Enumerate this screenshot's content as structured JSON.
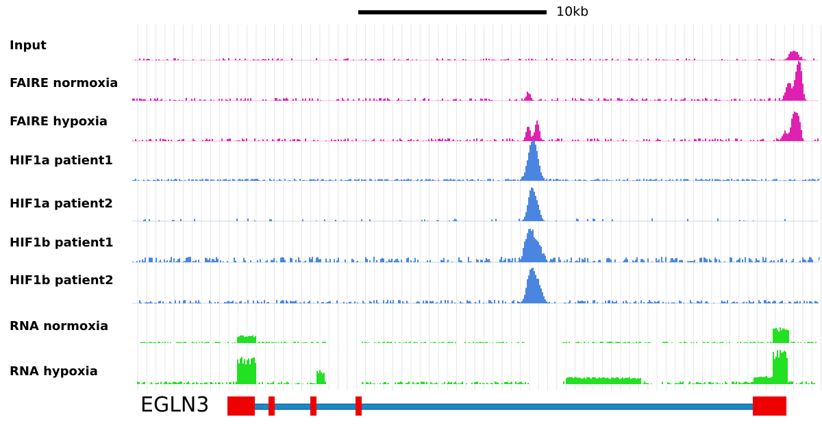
{
  "scale_bar": {
    "label": "10kb"
  },
  "tracks": [
    {
      "label": "Input",
      "color": "#e020b0"
    },
    {
      "label": "FAIRE normoxia",
      "color": "#e020b0"
    },
    {
      "label": "FAIRE hypoxia",
      "color": "#e020b0"
    },
    {
      "label": "HIF1a patient1",
      "color": "#4a86e0"
    },
    {
      "label": "HIF1a patient2",
      "color": "#4a86e0"
    },
    {
      "label": "HIF1b patient1",
      "color": "#4a86e0"
    },
    {
      "label": "HIF1b patient2",
      "color": "#4a86e0"
    },
    {
      "label": "RNA normoxia",
      "color": "#22e022"
    },
    {
      "label": "RNA hypoxia",
      "color": "#22e022"
    }
  ],
  "gene": {
    "name": "EGLN3",
    "exon_color": "#ee0000",
    "intron_color": "#1a88c8"
  }
}
